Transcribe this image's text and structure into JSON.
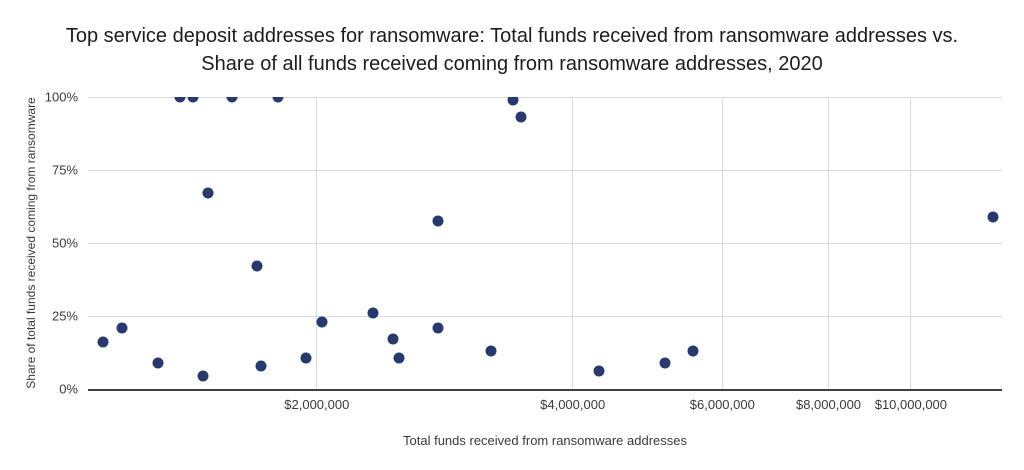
{
  "title": {
    "line1": "Top service deposit addresses for ransomware: Total funds received from ransomware addresses vs.",
    "line2": "Share of all funds received coming from ransomware addresses, 2020"
  },
  "chart_data": {
    "type": "scatter",
    "title": "Top service deposit addresses for ransomware: Total funds received from ransomware addresses vs. Share of all funds received coming from ransomware addresses, 2020",
    "xlabel": "Total funds received from ransomware addresses",
    "ylabel": "Share of total funds received coming from ransomware",
    "x_scale": "log",
    "x_domain": [
      1076000,
      12800000
    ],
    "y_domain": [
      0,
      100
    ],
    "grid": true,
    "legend": false,
    "x_ticks": [
      {
        "value": 2000000,
        "label": "$2,000,000"
      },
      {
        "value": 4000000,
        "label": "$4,000,000"
      },
      {
        "value": 6000000,
        "label": "$6,000,000"
      },
      {
        "value": 8000000,
        "label": "$8,000,000"
      },
      {
        "value": 10000000,
        "label": "$10,000,000"
      }
    ],
    "y_ticks": [
      {
        "value": 0,
        "label": "0%"
      },
      {
        "value": 25,
        "label": "25%"
      },
      {
        "value": 50,
        "label": "50%"
      },
      {
        "value": 75,
        "label": "75%"
      },
      {
        "value": 100,
        "label": "100%"
      }
    ],
    "points": [
      {
        "total_funds_usd": 1120000,
        "ransomware_share_pct": 16
      },
      {
        "total_funds_usd": 1180000,
        "ransomware_share_pct": 21
      },
      {
        "total_funds_usd": 1300000,
        "ransomware_share_pct": 9
      },
      {
        "total_funds_usd": 1380000,
        "ransomware_share_pct": 100
      },
      {
        "total_funds_usd": 1430000,
        "ransomware_share_pct": 100
      },
      {
        "total_funds_usd": 1470000,
        "ransomware_share_pct": 4.5
      },
      {
        "total_funds_usd": 1490000,
        "ransomware_share_pct": 67
      },
      {
        "total_funds_usd": 1590000,
        "ransomware_share_pct": 100
      },
      {
        "total_funds_usd": 1700000,
        "ransomware_share_pct": 42
      },
      {
        "total_funds_usd": 1720000,
        "ransomware_share_pct": 8
      },
      {
        "total_funds_usd": 1800000,
        "ransomware_share_pct": 100
      },
      {
        "total_funds_usd": 1940000,
        "ransomware_share_pct": 10.5
      },
      {
        "total_funds_usd": 2030000,
        "ransomware_share_pct": 23
      },
      {
        "total_funds_usd": 2330000,
        "ransomware_share_pct": 26
      },
      {
        "total_funds_usd": 2460000,
        "ransomware_share_pct": 17
      },
      {
        "total_funds_usd": 2500000,
        "ransomware_share_pct": 10.5
      },
      {
        "total_funds_usd": 2780000,
        "ransomware_share_pct": 57.5
      },
      {
        "total_funds_usd": 2780000,
        "ransomware_share_pct": 21
      },
      {
        "total_funds_usd": 3210000,
        "ransomware_share_pct": 13
      },
      {
        "total_funds_usd": 3400000,
        "ransomware_share_pct": 99
      },
      {
        "total_funds_usd": 3480000,
        "ransomware_share_pct": 93
      },
      {
        "total_funds_usd": 4300000,
        "ransomware_share_pct": 6
      },
      {
        "total_funds_usd": 5140000,
        "ransomware_share_pct": 9
      },
      {
        "total_funds_usd": 5540000,
        "ransomware_share_pct": 13
      },
      {
        "total_funds_usd": 12500000,
        "ransomware_share_pct": 59
      }
    ]
  },
  "colors": {
    "marker": "#273a6e",
    "gridline": "#d9d9d9",
    "axis_line": "#3f3f3f",
    "tick_text": "#3a3a3a",
    "title_text": "#1c1c1c",
    "background": "#ffffff"
  }
}
